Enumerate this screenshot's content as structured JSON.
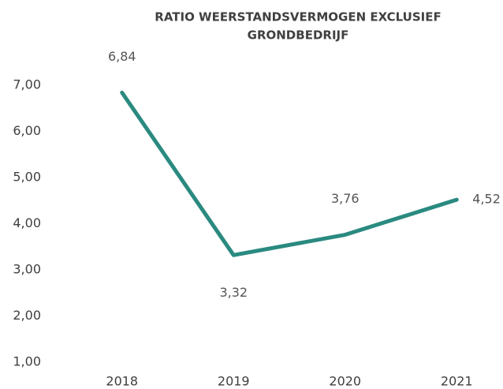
{
  "chart_data": {
    "type": "line",
    "title": [
      "RATIO WEERSTANDSVERMOGEN EXCLUSIEF",
      "GRONDBEDRIJF"
    ],
    "categories": [
      "2018",
      "2019",
      "2020",
      "2021"
    ],
    "series": [
      {
        "name": "Ratio weerstandsvermogen",
        "color": "#2a8a80",
        "values": [
          6.84,
          3.32,
          3.76,
          4.52
        ],
        "value_labels": [
          "6,84",
          "3,32",
          "3,76",
          "4,52"
        ]
      }
    ],
    "ylim": [
      1,
      7
    ],
    "yticks": [
      {
        "value": 1,
        "label": "1,00"
      },
      {
        "value": 2,
        "label": "2,00"
      },
      {
        "value": 3,
        "label": "3,00"
      },
      {
        "value": 4,
        "label": "4,00"
      },
      {
        "value": 5,
        "label": "5,00"
      },
      {
        "value": 6,
        "label": "6,00"
      },
      {
        "value": 7,
        "label": "7,00"
      }
    ],
    "grid": false
  }
}
